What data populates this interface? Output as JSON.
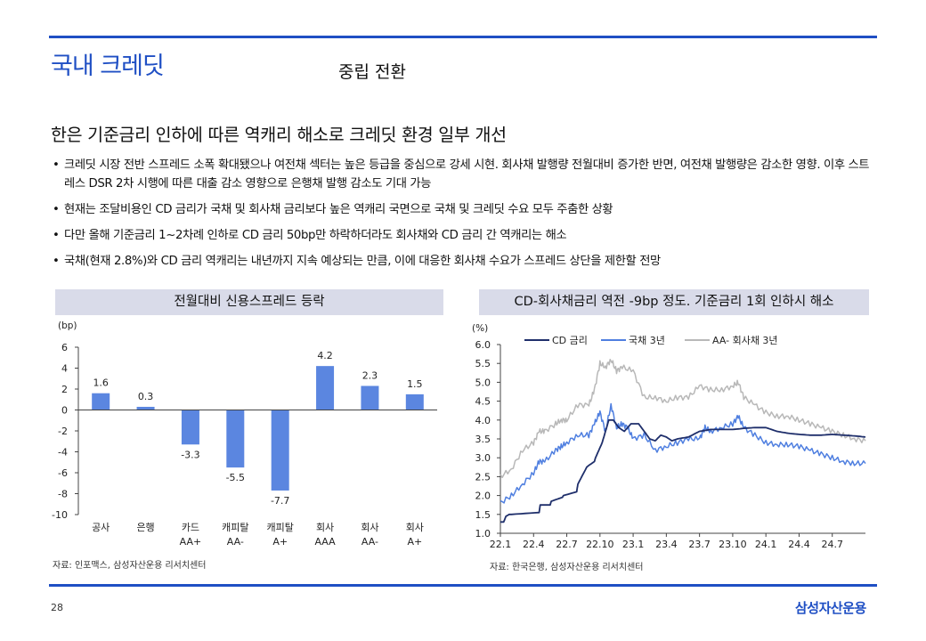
{
  "header": {
    "title": "국내 크레딧",
    "subtitle": "중립 전환"
  },
  "headline": "한은 기준금리 인하에 따른 역캐리 해소로 크레딧 환경 일부 개선",
  "bullets": [
    "크레딧 시장 전반 스프레드 소폭 확대됐으나 여전채 섹터는 높은 등급을 중심으로 강세 시현. 회사채 발행량 전월대비 증가한 반면, 여전채 발행량은 감소한 영향. 이후 스트레스 DSR 2차 시행에 따른 대출 감소 영향으로 은행채 발행 감소도 기대 가능",
    "현재는 조달비용인 CD 금리가 국채 및 회사채 금리보다 높은 역캐리 국면으로 국채 및 크레딧 수요 모두 주춤한 상황",
    "다만 올해 기준금리 1~2차례 인하로 CD 금리 50bp만 하락하더라도 회사채와 CD 금리 간 역캐리는 해소",
    "국채(현재 2.8%)와 CD 금리 역캐리는 내년까지 지속 예상되는 만큼, 이에 대응한 회사채 수요가 스프레드 상단을 제한할 전망"
  ],
  "left_panel": {
    "title": "전월대비 신용스프레드 등락",
    "source": "자료: 인포맥스, 삼성자산운용 리서치센터"
  },
  "right_panel": {
    "title": "CD-회사채금리 역전 -9bp 정도. 기준금리 1회 인하시 해소",
    "source": "자료: 한국은행, 삼성자산운용 리서치센터"
  },
  "footer": {
    "page": "28",
    "brand": "삼성자산운용"
  },
  "colors": {
    "accent": "#1f4fc4",
    "bar": "#5b86e0",
    "cd": "#1f2f6b",
    "ktb": "#4f7fe0",
    "corp": "#b8b8b8",
    "panel_bg": "#d9dbe9"
  },
  "chart_data": [
    {
      "type": "bar",
      "title": "전월대비 신용스프레드 등락",
      "ylabel": "(bp)",
      "ylim": [
        -10,
        6
      ],
      "yticks": [
        -10,
        -8,
        -6,
        -4,
        -2,
        0,
        2,
        4,
        6
      ],
      "categories": [
        [
          "공사"
        ],
        [
          "은행"
        ],
        [
          "카드",
          "AA+"
        ],
        [
          "캐피탈",
          "AA-"
        ],
        [
          "캐피탈",
          "A+"
        ],
        [
          "회사",
          "AAA"
        ],
        [
          "회사",
          "AA-"
        ],
        [
          "회사",
          "A+"
        ]
      ],
      "values": [
        1.6,
        0.3,
        -3.3,
        -5.5,
        -7.7,
        4.2,
        2.3,
        1.5
      ],
      "value_labels": [
        "1.6",
        "0.3",
        "-3.3",
        "-5.5",
        "-7.7",
        "4.2",
        "2.3",
        "1.5"
      ]
    },
    {
      "type": "line",
      "title": "CD-회사채금리 역전 -9bp 정도. 기준금리 1회 인하시 해소",
      "ylabel": "(%)",
      "ylim": [
        1.0,
        6.0
      ],
      "yticks": [
        1.0,
        1.5,
        2.0,
        2.5,
        3.0,
        3.5,
        4.0,
        4.5,
        5.0,
        5.5,
        6.0
      ],
      "ytick_labels": [
        "1.0",
        "1.5",
        "2.0",
        "2.5",
        "3.0",
        "3.5",
        "4.0",
        "4.5",
        "5.0",
        "5.5",
        "6.0"
      ],
      "xlim": [
        0,
        33
      ],
      "xticks": [
        0,
        3,
        6,
        9,
        12,
        15,
        18,
        21,
        24,
        27,
        30
      ],
      "xtick_labels": [
        "22.1",
        "22.4",
        "22.7",
        "22.10",
        "23.1",
        "23.4",
        "23.7",
        "23.10",
        "24.1",
        "24.4",
        "24.7"
      ],
      "legend": "top",
      "series": [
        {
          "name": "CD 금리",
          "color": "#1f2f6b",
          "x": [
            0,
            0.3,
            0.5,
            0.8,
            1.0,
            3.5,
            3.6,
            4.5,
            4.6,
            5.6,
            5.7,
            6.9,
            7.0,
            7.8,
            8.0,
            8.5,
            8.6,
            9.2,
            9.5,
            9.8,
            10.2,
            10.7,
            11.2,
            11.8,
            12.5,
            13.0,
            13.5,
            14.0,
            14.5,
            15.0,
            15.5,
            16.0,
            17.0,
            18.0,
            19.0,
            20.0,
            21.0,
            22.0,
            23.0,
            24.0,
            25.0,
            26.0,
            27.0,
            28.0,
            29.0,
            30.0,
            31.0,
            32.0,
            33.0
          ],
          "y": [
            1.3,
            1.3,
            1.45,
            1.5,
            1.5,
            1.55,
            1.75,
            1.75,
            1.85,
            1.95,
            2.0,
            2.1,
            2.3,
            2.75,
            2.8,
            2.9,
            3.0,
            3.4,
            3.7,
            4.0,
            4.0,
            3.8,
            3.7,
            3.9,
            3.9,
            3.7,
            3.5,
            3.45,
            3.6,
            3.55,
            3.45,
            3.5,
            3.55,
            3.7,
            3.75,
            3.75,
            3.75,
            3.78,
            3.8,
            3.8,
            3.7,
            3.65,
            3.62,
            3.6,
            3.6,
            3.62,
            3.6,
            3.58,
            3.55
          ]
        },
        {
          "name": "국채 3년",
          "color": "#4f7fe0",
          "x": [
            0,
            1,
            2,
            3,
            3.5,
            4,
            5,
            5.5,
            6,
            7,
            8,
            8.5,
            9,
            9.5,
            10,
            10.5,
            11,
            11.5,
            12,
            13,
            14,
            15,
            16,
            17,
            18,
            18.5,
            19,
            20,
            21,
            21.5,
            22,
            23,
            24,
            25,
            26,
            27,
            28,
            29,
            30,
            31,
            32,
            33
          ],
          "y": [
            1.8,
            2.0,
            2.3,
            2.6,
            2.9,
            2.9,
            3.2,
            3.3,
            3.4,
            3.6,
            3.6,
            3.9,
            4.2,
            3.7,
            4.4,
            3.8,
            3.9,
            3.8,
            3.5,
            3.6,
            3.2,
            3.3,
            3.4,
            3.5,
            3.5,
            3.8,
            3.7,
            3.8,
            3.9,
            4.1,
            3.8,
            3.6,
            3.4,
            3.35,
            3.35,
            3.3,
            3.2,
            3.1,
            3.0,
            2.9,
            2.85,
            2.85
          ]
        },
        {
          "name": "AA- 회사채 3년",
          "color": "#b8b8b8",
          "x": [
            0,
            1,
            2,
            3,
            3.5,
            4,
            5,
            5.5,
            6,
            7,
            8,
            8.5,
            9,
            9.5,
            10,
            10.5,
            11,
            12,
            13,
            14,
            15,
            16,
            17,
            18,
            19,
            20,
            21,
            21.5,
            22,
            23,
            24,
            25,
            26,
            27,
            28,
            29,
            30,
            31,
            32,
            33
          ],
          "y": [
            2.5,
            2.7,
            3.2,
            3.4,
            3.7,
            3.7,
            3.9,
            4.0,
            4.0,
            4.4,
            4.4,
            4.8,
            5.5,
            5.4,
            5.6,
            5.3,
            5.4,
            5.3,
            4.6,
            4.6,
            4.5,
            4.6,
            4.6,
            4.9,
            4.8,
            4.8,
            4.9,
            5.0,
            4.6,
            4.4,
            4.2,
            4.1,
            4.1,
            4.0,
            3.9,
            3.8,
            3.7,
            3.6,
            3.5,
            3.45
          ]
        }
      ]
    }
  ]
}
